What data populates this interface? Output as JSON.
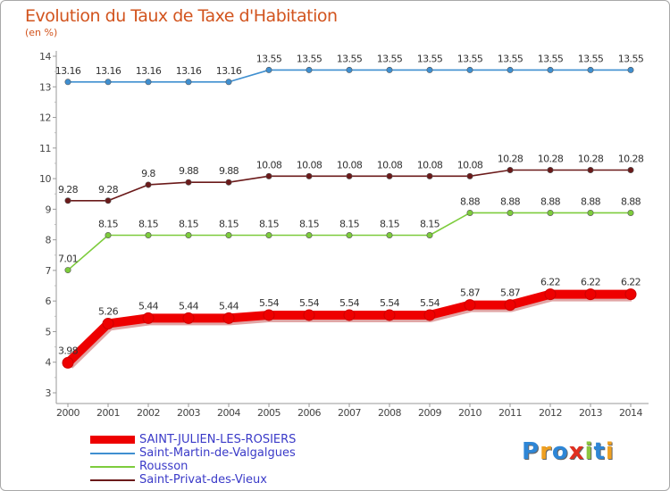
{
  "chart_data": {
    "type": "line",
    "title": "Evolution du Taux de Taxe d'Habitation",
    "subtitle": "(en %)",
    "x": [
      "2000",
      "2001",
      "2002",
      "2003",
      "2004",
      "2005",
      "2006",
      "2007",
      "2008",
      "2009",
      "2010",
      "2011",
      "2012",
      "2013",
      "2014"
    ],
    "ylim": [
      3,
      14
    ],
    "yticks": [
      "3",
      "4",
      "5",
      "6",
      "7",
      "8",
      "9",
      "10",
      "11",
      "12",
      "13",
      "14"
    ],
    "grid": false,
    "legend_position": "bottom-left",
    "series": [
      {
        "name": "Saint-Martin-de-Valgalgues",
        "color": "#3f8fd0",
        "values": [
          13.16,
          13.16,
          13.16,
          13.16,
          13.16,
          13.55,
          13.55,
          13.55,
          13.55,
          13.55,
          13.55,
          13.55,
          13.55,
          13.55,
          13.55
        ],
        "labels": [
          "13.16",
          "13.16",
          "13.16",
          "13.16",
          "13.16",
          "13.55",
          "13.55",
          "13.55",
          "13.55",
          "13.55",
          "13.55",
          "13.55",
          "13.55",
          "13.55",
          "13.55"
        ]
      },
      {
        "name": "Saint-Privat-des-Vieux",
        "color": "#6b1a1a",
        "values": [
          9.28,
          9.28,
          9.8,
          9.88,
          9.88,
          10.08,
          10.08,
          10.08,
          10.08,
          10.08,
          10.08,
          10.28,
          10.28,
          10.28,
          10.28
        ],
        "labels": [
          "9.28",
          "9.28",
          "9.8",
          "9.88",
          "9.88",
          "10.08",
          "10.08",
          "10.08",
          "10.08",
          "10.08",
          "10.08",
          "10.28",
          "10.28",
          "10.28",
          "10.28"
        ]
      },
      {
        "name": "Rousson",
        "color": "#7dcc3c",
        "values": [
          7.01,
          8.15,
          8.15,
          8.15,
          8.15,
          8.15,
          8.15,
          8.15,
          8.15,
          8.15,
          8.88,
          8.88,
          8.88,
          8.88,
          8.88
        ],
        "labels": [
          "7.01",
          "8.15",
          "8.15",
          "8.15",
          "8.15",
          "8.15",
          "8.15",
          "8.15",
          "8.15",
          "8.15",
          "8.88",
          "8.88",
          "8.88",
          "8.88",
          "8.88"
        ]
      },
      {
        "name": "SAINT-JULIEN-LES-ROSIERS",
        "color": "#ee0000",
        "values": [
          3.98,
          5.26,
          5.44,
          5.44,
          5.44,
          5.54,
          5.54,
          5.54,
          5.54,
          5.54,
          5.87,
          5.87,
          6.22,
          6.22,
          6.22
        ],
        "labels": [
          "3.98",
          "5.26",
          "5.44",
          "5.44",
          "5.44",
          "5.54",
          "5.54",
          "5.54",
          "5.54",
          "5.54",
          "5.87",
          "5.87",
          "6.22",
          "6.22",
          "6.22"
        ]
      }
    ]
  },
  "legend": [
    {
      "label": "SAINT-JULIEN-LES-ROSIERS",
      "color": "#ee0000",
      "thick": true
    },
    {
      "label": "Saint-Martin-de-Valgalgues",
      "color": "#3f8fd0",
      "thick": false
    },
    {
      "label": "Rousson",
      "color": "#7dcc3c",
      "thick": false
    },
    {
      "label": "Saint-Privat-des-Vieux",
      "color": "#6b1a1a",
      "thick": false
    }
  ],
  "logo": {
    "letters": [
      "P",
      "r",
      "o",
      "x",
      "i",
      "t",
      "i"
    ],
    "colors": [
      "#2e86d6",
      "#f0a020",
      "#2e86d6",
      "#e03020",
      "#8cc63f",
      "#2e86d6",
      "#f0a020"
    ]
  }
}
